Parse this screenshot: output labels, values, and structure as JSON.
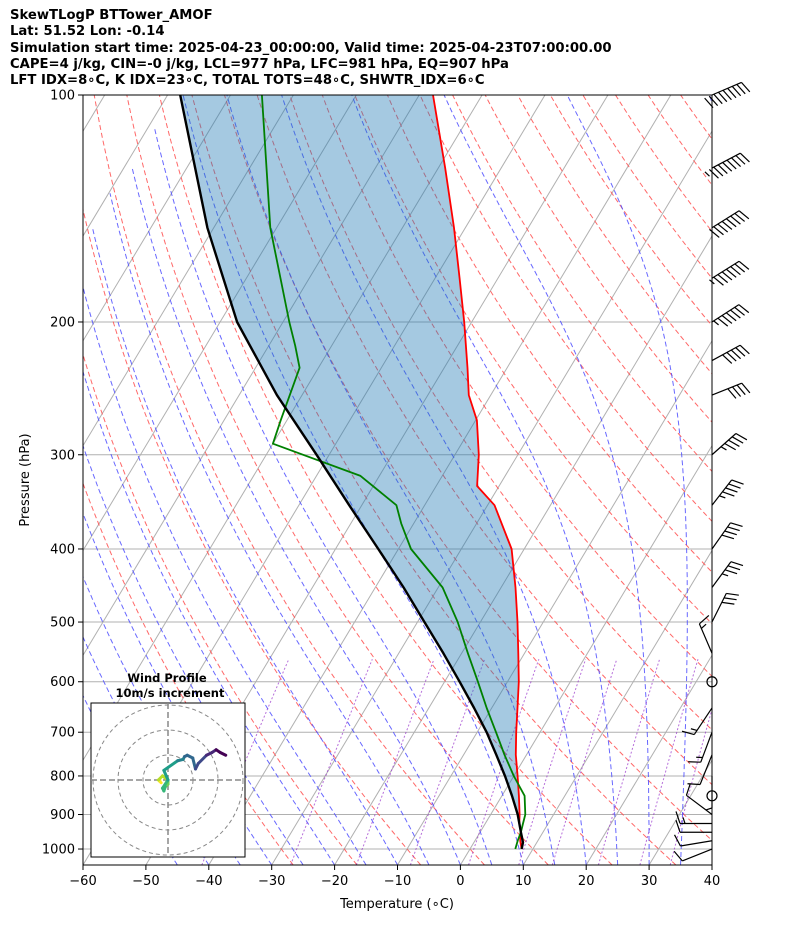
{
  "header": {
    "line1": "SkewTLogP BTTower_AMOF",
    "line2": "Lat: 51.52   Lon: -0.14",
    "line3": "Simulation start time: 2025-04-23_00:00:00, Valid time: 2025-04-23T07:00:00.00",
    "line4": "CAPE=4 j/kg, CIN=-0 j/kg, LCL=977 hPa, LFC=981 hPa, EQ=907 hPa",
    "line5": "LFT IDX=8∘C, K IDX=23∘C, TOTAL TOTS=48∘C, SHWTR_IDX=6∘C"
  },
  "chart_data": {
    "type": "line",
    "subtype": "skew-t log-p",
    "xlabel": "Temperature (∘C)",
    "ylabel": "Pressure (hPa)",
    "xlim": [
      -60,
      40
    ],
    "ylim": [
      1050,
      100
    ],
    "y_scale": "log",
    "grid": true,
    "x_ticks": [
      -60,
      -50,
      -40,
      -30,
      -20,
      -10,
      0,
      10,
      20,
      30,
      40
    ],
    "y_ticks": [
      1000,
      900,
      800,
      700,
      600,
      500,
      400,
      300,
      200,
      100
    ],
    "series": [
      {
        "color": "#ff0000",
        "pressure": [
          1000,
          975,
          950,
          925,
          900,
          850,
          800,
          750,
          700,
          650,
          600,
          550,
          500,
          450,
          400,
          350,
          330,
          300,
          270,
          250,
          230,
          200,
          175,
          150,
          125,
          100
        ],
        "values": [
          8.2,
          7.2,
          6.5,
          5.4,
          4.6,
          2.7,
          0.6,
          -1.7,
          -3.8,
          -5.9,
          -8.2,
          -11.0,
          -14.1,
          -17.7,
          -22.0,
          -28.9,
          -33.5,
          -36.2,
          -39.8,
          -43.5,
          -46.3,
          -51.2,
          -56.1,
          -61.8,
          -68.9,
          -77.8
        ]
      },
      {
        "color": "#008000",
        "pressure": [
          1000,
          975,
          950,
          925,
          900,
          850,
          800,
          750,
          700,
          650,
          600,
          550,
          500,
          450,
          400,
          370,
          350,
          320,
          290,
          270,
          230,
          215,
          200,
          150,
          100
        ],
        "values": [
          7.2,
          6.8,
          6.5,
          6.0,
          5.5,
          3.6,
          0.0,
          -3.5,
          -7.0,
          -10.8,
          -14.7,
          -19.0,
          -23.6,
          -29.3,
          -38.0,
          -42.0,
          -44.5,
          -53.0,
          -70.0,
          -71.0,
          -73.0,
          -75.8,
          -79.0,
          -91.0,
          -105.0
        ]
      },
      {
        "color": "#000000",
        "pressure": [
          1000,
          980,
          950,
          900,
          850,
          800,
          750,
          700,
          650,
          600,
          550,
          500,
          450,
          400,
          350,
          300,
          250,
          200,
          150,
          100
        ],
        "values": [
          8.2,
          7.8,
          6.5,
          4.3,
          1.6,
          -1.4,
          -4.8,
          -8.5,
          -12.8,
          -17.6,
          -22.9,
          -28.9,
          -35.5,
          -43.2,
          -52.0,
          -62.0,
          -74.0,
          -87.3,
          -101.0,
          -118.0
        ]
      }
    ],
    "wind_barbs": {
      "pressure": [
        1000,
        975,
        950,
        925,
        900,
        850,
        800,
        750,
        700,
        650,
        600,
        550,
        500,
        450,
        400,
        350,
        300,
        250,
        225,
        200,
        175,
        150,
        125,
        100
      ],
      "u": [
        -5,
        -6,
        -6,
        -7,
        -4,
        0,
        0,
        -2,
        -3,
        -4,
        0,
        -3,
        7,
        11,
        12,
        14,
        18,
        20,
        22,
        28,
        32,
        35,
        38,
        42
      ],
      "v": [
        -2,
        -1,
        0,
        0,
        3,
        0,
        -3,
        -5,
        -8,
        -6,
        0,
        7,
        14,
        15,
        17,
        18,
        16,
        8,
        12,
        18,
        20,
        22,
        20,
        18
      ]
    },
    "hodograph": {
      "title": "Wind Profile",
      "subtitle": "10m/s increment"
    }
  }
}
